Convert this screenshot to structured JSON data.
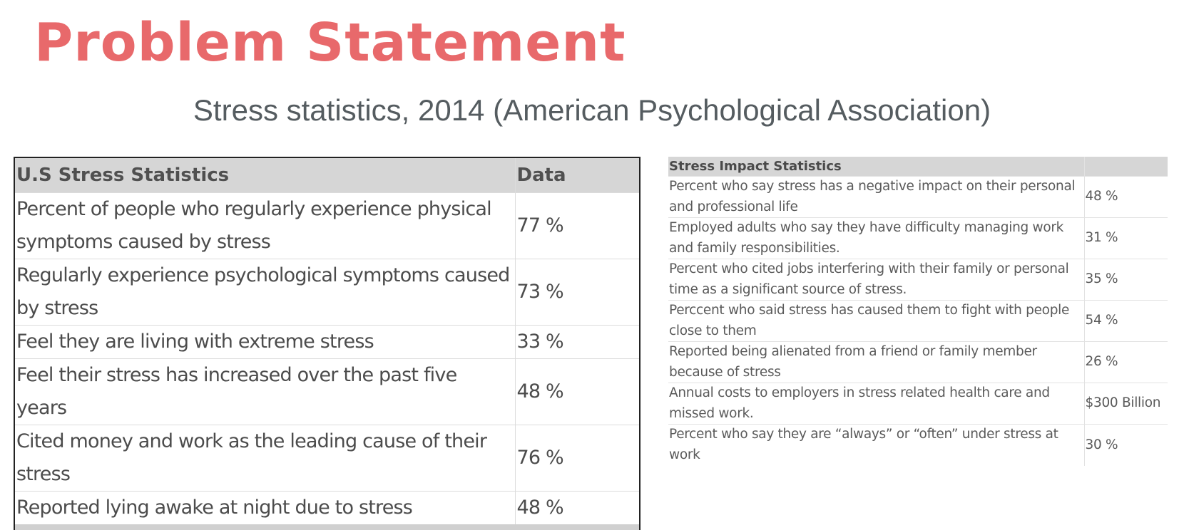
{
  "title": "Problem Statement",
  "subtitle": "Stress statistics, 2014 (American Psychological Association)",
  "chart_data": [
    {
      "type": "table",
      "columns": [
        "U.S Stress Statistics",
        "Data"
      ],
      "rows": [
        {
          "label": "Percent of people who regularly experience physical symptoms caused by stress",
          "value": "77 %"
        },
        {
          "label": "Regularly experience psychological symptoms caused by stress",
          "value": "73 %"
        },
        {
          "label": "Feel they are living with extreme stress",
          "value": "33 %"
        },
        {
          "label": "Feel their stress has increased over the past five years",
          "value": "48 %"
        },
        {
          "label": "Cited money and work as the leading cause of their stress",
          "value": "76 %"
        },
        {
          "label": "Reported lying awake at night due to stress",
          "value": "48 %"
        }
      ]
    },
    {
      "type": "table",
      "columns": [
        "Stress Impact Statistics",
        ""
      ],
      "rows": [
        {
          "label": "Percent who say stress has a negative impact on their personal and professional life",
          "value": "48 %"
        },
        {
          "label": "Employed adults who say they have difficulty managing work and family responsibilities.",
          "value": "31 %"
        },
        {
          "label": "Percent who cited jobs interfering with their family or personal time as a significant source of stress.",
          "value": "35 %"
        },
        {
          "label": "Perccent who said stress has caused them to fight with people close to them",
          "value": "54 %"
        },
        {
          "label": "Reported being alienated from a friend or family member because of stress",
          "value": "26 %"
        },
        {
          "label": "Annual costs to employers in stress related health care and missed work.",
          "value": "$300 Billion"
        },
        {
          "label": "Percent who say they are “always” or “often” under stress at work",
          "value": "30 %"
        }
      ]
    }
  ]
}
